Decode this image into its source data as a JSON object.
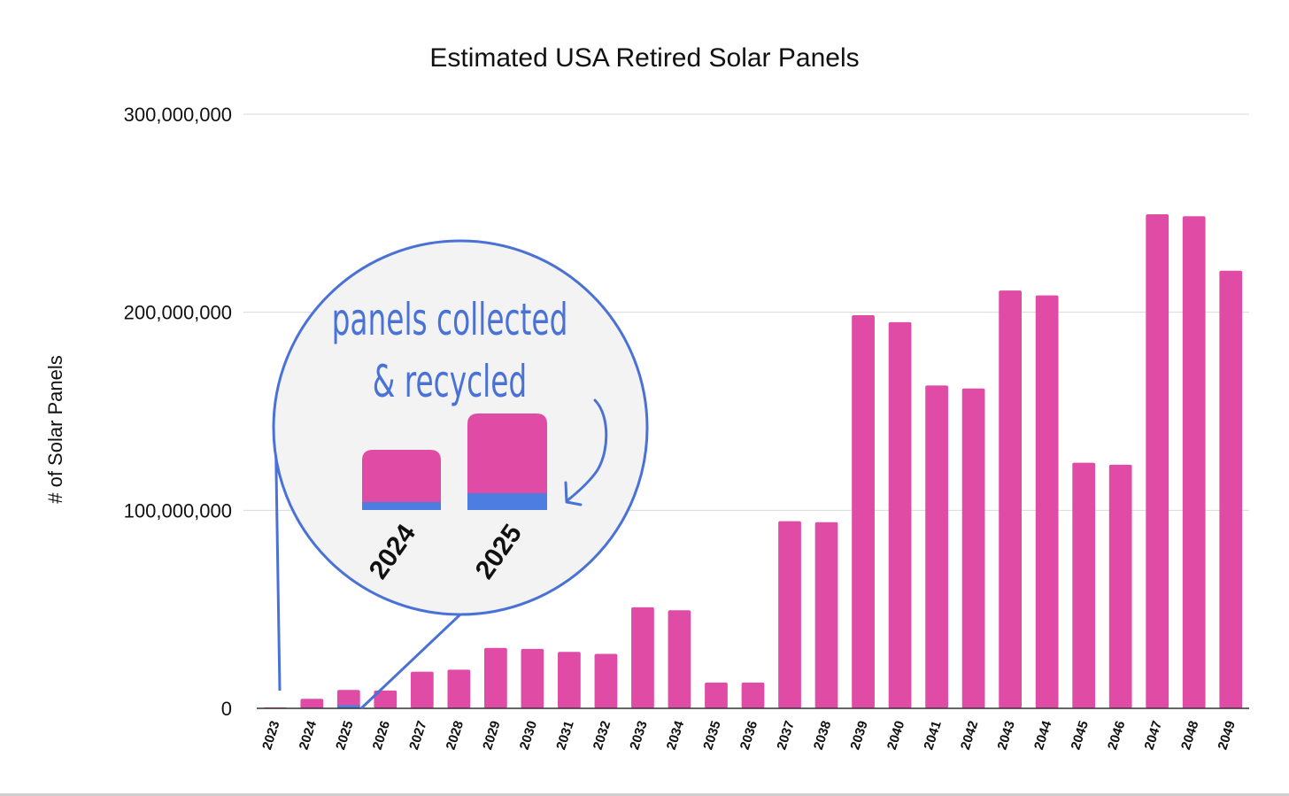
{
  "chart_data": {
    "type": "bar",
    "title": "Estimated USA Retired Solar Panels",
    "ylabel": "# of Solar Panels",
    "xlabel": "",
    "ylim": [
      0,
      300000000
    ],
    "yticks": [
      0,
      100000000,
      200000000,
      300000000
    ],
    "ytick_labels": [
      "0",
      "100,000,000",
      "200,000,000",
      "300,000,000"
    ],
    "grid": true,
    "categories": [
      "2023",
      "2024",
      "2025",
      "2026",
      "2027",
      "2028",
      "2029",
      "2030",
      "2031",
      "2032",
      "2033",
      "2034",
      "2035",
      "2036",
      "2037",
      "2038",
      "2039",
      "2040",
      "2041",
      "2042",
      "2043",
      "2044",
      "2045",
      "2046",
      "2047",
      "2048",
      "2049"
    ],
    "series": [
      {
        "values": [
          500000,
          4800000,
          9300000,
          9000000,
          18500000,
          19500000,
          30500000,
          30000000,
          28500000,
          27500000,
          51000000,
          49500000,
          13000000,
          13000000,
          94500000,
          94000000,
          198500000,
          195000000,
          163000000,
          161500000,
          211000000,
          208500000,
          124000000,
          123000000,
          249500000,
          248500000,
          221000000
        ],
        "color": "#e04ba5"
      },
      {
        "values": [
          0,
          300000,
          1600000,
          0,
          0,
          0,
          0,
          0,
          0,
          0,
          0,
          0,
          0,
          0,
          0,
          0,
          0,
          0,
          0,
          0,
          0,
          0,
          0,
          0,
          0,
          0,
          0
        ],
        "color": "#4d7de0"
      }
    ]
  },
  "callout": {
    "line1": "panels collected",
    "line2": "& recycled",
    "years": [
      "2024",
      "2025"
    ],
    "accent": "#4a72d6",
    "bubble_fill": "#f3f3f3"
  }
}
